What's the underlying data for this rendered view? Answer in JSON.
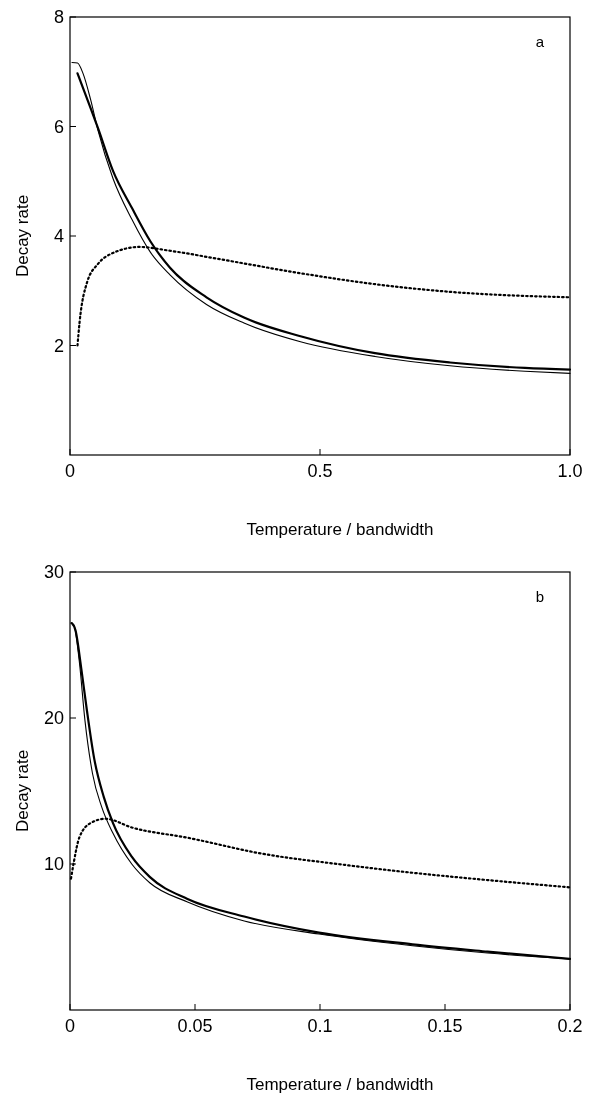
{
  "chart_data": [
    {
      "type": "line",
      "annotations": [
        "a"
      ],
      "xlabel": "Temperature / bandwidth",
      "ylabel": "Decay rate",
      "xlim": [
        0,
        1
      ],
      "xticks": [
        0,
        0.5,
        {
          "value": 1,
          "label": "1.0"
        }
      ],
      "ylim": [
        0,
        8
      ],
      "yticks": [
        2,
        4,
        6,
        8
      ],
      "grid": false,
      "series": [
        {
          "color": "#000000",
          "line_style": "solid",
          "x": [
            0.004,
            0.015,
            0.026,
            0.041,
            0.056,
            0.086,
            0.124,
            0.161,
            0.2,
            0.273,
            0.348,
            0.461,
            0.61,
            0.76,
            0.91,
            1.0
          ],
          "values": [
            7.17,
            7.16,
            6.97,
            6.5,
            5.93,
            5.05,
            4.3,
            3.7,
            3.29,
            2.75,
            2.41,
            2.07,
            1.8,
            1.63,
            1.53,
            1.49
          ]
        },
        {
          "color": "#000000",
          "line_style": "solid",
          "x": [
            0.015,
            0.041,
            0.056,
            0.086,
            0.124,
            0.161,
            0.2,
            0.273,
            0.348,
            0.461,
            0.61,
            0.76,
            0.91,
            1.0
          ],
          "values": [
            6.97,
            6.34,
            5.97,
            5.19,
            4.51,
            3.9,
            3.42,
            2.88,
            2.51,
            2.17,
            1.86,
            1.69,
            1.59,
            1.56
          ]
        },
        {
          "color": "#000000",
          "line_style": "dotted",
          "x": [
            0.015,
            0.019,
            0.034,
            0.056,
            0.086,
            0.139,
            0.2,
            0.31,
            0.461,
            0.61,
            0.76,
            1.0
          ],
          "values": [
            2.0,
            2.41,
            3.15,
            3.49,
            3.69,
            3.8,
            3.73,
            3.56,
            3.32,
            3.12,
            2.98,
            2.88
          ]
        }
      ]
    },
    {
      "type": "line",
      "annotations": [
        "b"
      ],
      "xlabel": "Temperature / bandwidth",
      "ylabel": "Decay rate",
      "xlim": [
        0,
        0.2
      ],
      "xticks": [
        0,
        0.05,
        0.1,
        0.15,
        0.2
      ],
      "ylim": [
        0,
        30
      ],
      "yticks": [
        10,
        20,
        30
      ],
      "grid": false,
      "series": [
        {
          "color": "#000000",
          "line_style": "solid",
          "x": [
            0.0004,
            0.0015,
            0.0037,
            0.006,
            0.009,
            0.0127,
            0.0172,
            0.0247,
            0.032,
            0.047,
            0.0697,
            0.0996,
            0.137,
            0.167,
            0.2
          ],
          "values": [
            26.5,
            26.4,
            23.9,
            19.8,
            16.2,
            13.9,
            12.1,
            10.0,
            8.7,
            7.4,
            6.1,
            5.2,
            4.4,
            3.9,
            3.5
          ]
        },
        {
          "color": "#000000",
          "line_style": "solid",
          "x": [
            0.0007,
            0.0022,
            0.0045,
            0.0067,
            0.0097,
            0.0135,
            0.0172,
            0.0247,
            0.032,
            0.047,
            0.0697,
            0.0996,
            0.137,
            0.167,
            0.2
          ],
          "values": [
            26.5,
            26.0,
            23.4,
            20.6,
            17.2,
            14.6,
            12.8,
            10.5,
            9.1,
            7.6,
            6.4,
            5.3,
            4.5,
            4.0,
            3.5
          ]
        },
        {
          "color": "#000000",
          "line_style": "dotted",
          "x": [
            0.0004,
            0.0015,
            0.0037,
            0.0082,
            0.0142,
            0.0247,
            0.047,
            0.077,
            0.107,
            0.137,
            0.167,
            0.2
          ],
          "values": [
            9.0,
            10.1,
            11.8,
            12.8,
            13.1,
            12.5,
            11.8,
            10.7,
            10.0,
            9.4,
            8.9,
            8.4
          ]
        }
      ]
    }
  ]
}
